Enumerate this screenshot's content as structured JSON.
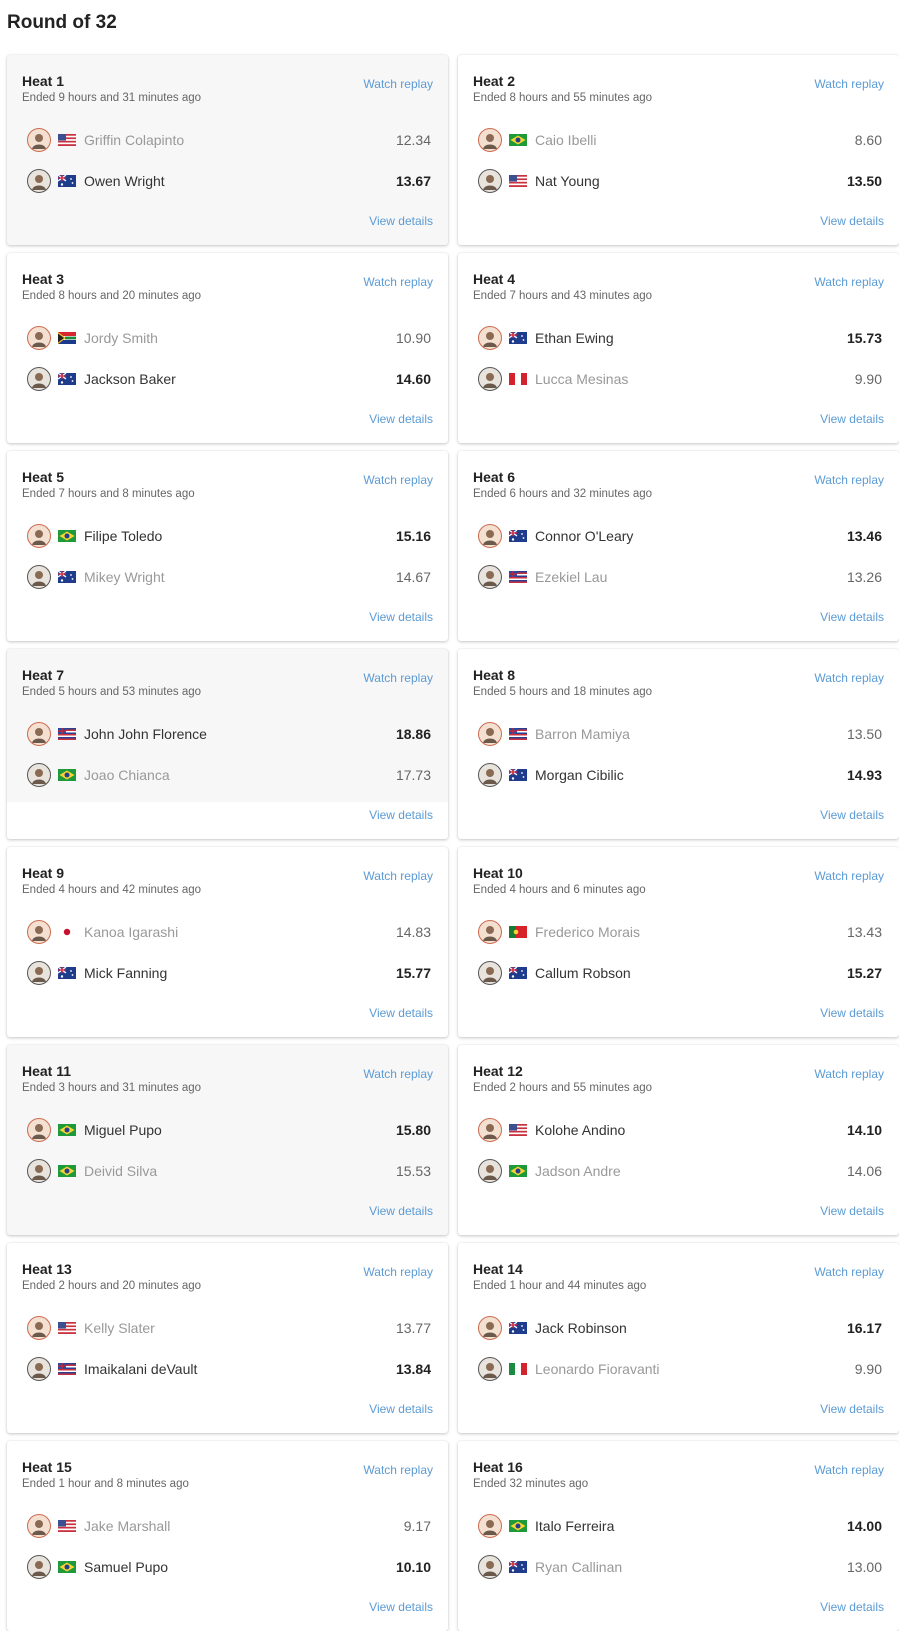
{
  "page": {
    "title": "Round of 32"
  },
  "labels": {
    "watch_replay": "Watch replay",
    "view_details": "View details"
  },
  "colors": {
    "link": "#5b9bd5",
    "loser_text": "#999999",
    "winner_text": "#333333"
  },
  "heats": [
    {
      "title": "Heat 1",
      "status": "Ended 9 hours and 31 minutes ago",
      "athletes": [
        {
          "name": "Griffin Colapinto",
          "flag": "us",
          "score": "12.34",
          "winner": false
        },
        {
          "name": "Owen Wright",
          "flag": "au",
          "score": "13.67",
          "winner": true
        }
      ]
    },
    {
      "title": "Heat 2",
      "status": "Ended 8 hours and 55 minutes ago",
      "athletes": [
        {
          "name": "Caio Ibelli",
          "flag": "br",
          "score": "8.60",
          "winner": false
        },
        {
          "name": "Nat Young",
          "flag": "us",
          "score": "13.50",
          "winner": true
        }
      ]
    },
    {
      "title": "Heat 3",
      "status": "Ended 8 hours and 20 minutes ago",
      "athletes": [
        {
          "name": "Jordy Smith",
          "flag": "za",
          "score": "10.90",
          "winner": false
        },
        {
          "name": "Jackson Baker",
          "flag": "au",
          "score": "14.60",
          "winner": true
        }
      ]
    },
    {
      "title": "Heat 4",
      "status": "Ended 7 hours and 43 minutes ago",
      "athletes": [
        {
          "name": "Ethan Ewing",
          "flag": "au",
          "score": "15.73",
          "winner": true
        },
        {
          "name": "Lucca Mesinas",
          "flag": "pe",
          "score": "9.90",
          "winner": false
        }
      ]
    },
    {
      "title": "Heat 5",
      "status": "Ended 7 hours and 8 minutes ago",
      "athletes": [
        {
          "name": "Filipe Toledo",
          "flag": "br",
          "score": "15.16",
          "winner": true
        },
        {
          "name": "Mikey Wright",
          "flag": "au",
          "score": "14.67",
          "winner": false
        }
      ]
    },
    {
      "title": "Heat 6",
      "status": "Ended 6 hours and 32 minutes ago",
      "athletes": [
        {
          "name": "Connor O'Leary",
          "flag": "au",
          "score": "13.46",
          "winner": true
        },
        {
          "name": "Ezekiel Lau",
          "flag": "hi",
          "score": "13.26",
          "winner": false
        }
      ]
    },
    {
      "title": "Heat 7",
      "status": "Ended 5 hours and 53 minutes ago",
      "athletes": [
        {
          "name": "John John Florence",
          "flag": "hi",
          "score": "18.86",
          "winner": true
        },
        {
          "name": "Joao Chianca",
          "flag": "br",
          "score": "17.73",
          "winner": false
        }
      ]
    },
    {
      "title": "Heat 8",
      "status": "Ended 5 hours and 18 minutes ago",
      "athletes": [
        {
          "name": "Barron Mamiya",
          "flag": "hi",
          "score": "13.50",
          "winner": false
        },
        {
          "name": "Morgan Cibilic",
          "flag": "au",
          "score": "14.93",
          "winner": true
        }
      ]
    },
    {
      "title": "Heat 9",
      "status": "Ended 4 hours and 42 minutes ago",
      "athletes": [
        {
          "name": "Kanoa Igarashi",
          "flag": "jp",
          "score": "14.83",
          "winner": false
        },
        {
          "name": "Mick Fanning",
          "flag": "au",
          "score": "15.77",
          "winner": true
        }
      ]
    },
    {
      "title": "Heat 10",
      "status": "Ended 4 hours and 6 minutes ago",
      "athletes": [
        {
          "name": "Frederico Morais",
          "flag": "pt",
          "score": "13.43",
          "winner": false
        },
        {
          "name": "Callum Robson",
          "flag": "au",
          "score": "15.27",
          "winner": true
        }
      ]
    },
    {
      "title": "Heat 11",
      "status": "Ended 3 hours and 31 minutes ago",
      "athletes": [
        {
          "name": "Miguel Pupo",
          "flag": "br",
          "score": "15.80",
          "winner": true
        },
        {
          "name": "Deivid Silva",
          "flag": "br",
          "score": "15.53",
          "winner": false
        }
      ]
    },
    {
      "title": "Heat 12",
      "status": "Ended 2 hours and 55 minutes ago",
      "athletes": [
        {
          "name": "Kolohe Andino",
          "flag": "us",
          "score": "14.10",
          "winner": true
        },
        {
          "name": "Jadson Andre",
          "flag": "br",
          "score": "14.06",
          "winner": false
        }
      ]
    },
    {
      "title": "Heat 13",
      "status": "Ended 2 hours and 20 minutes ago",
      "athletes": [
        {
          "name": "Kelly Slater",
          "flag": "us",
          "score": "13.77",
          "winner": false
        },
        {
          "name": "Imaikalani deVault",
          "flag": "hi",
          "score": "13.84",
          "winner": true
        }
      ]
    },
    {
      "title": "Heat 14",
      "status": "Ended 1 hour and 44 minutes ago",
      "athletes": [
        {
          "name": "Jack Robinson",
          "flag": "au",
          "score": "16.17",
          "winner": true
        },
        {
          "name": "Leonardo Fioravanti",
          "flag": "it",
          "score": "9.90",
          "winner": false
        }
      ]
    },
    {
      "title": "Heat 15",
      "status": "Ended 1 hour and 8 minutes ago",
      "athletes": [
        {
          "name": "Jake Marshall",
          "flag": "us",
          "score": "9.17",
          "winner": false
        },
        {
          "name": "Samuel Pupo",
          "flag": "br",
          "score": "10.10",
          "winner": true
        }
      ]
    },
    {
      "title": "Heat 16",
      "status": "Ended 32 minutes ago",
      "athletes": [
        {
          "name": "Italo Ferreira",
          "flag": "br",
          "score": "14.00",
          "winner": true
        },
        {
          "name": "Ryan Callinan",
          "flag": "au",
          "score": "13.00",
          "winner": false
        }
      ]
    }
  ]
}
